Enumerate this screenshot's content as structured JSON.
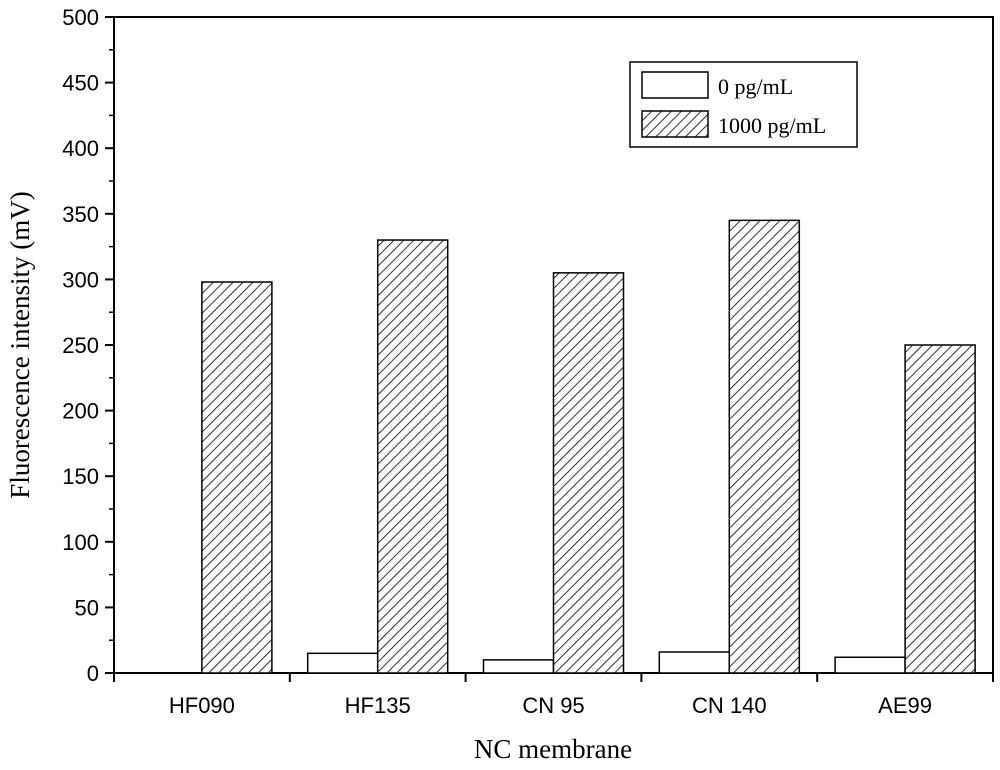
{
  "chart_data": {
    "type": "bar",
    "categories": [
      "HF090",
      "HF135",
      "CN 95",
      "CN 140",
      "AE99"
    ],
    "series": [
      {
        "name": "0 pg/mL",
        "values": [
          0,
          15,
          10,
          16,
          12
        ],
        "fill": "#ffffff"
      },
      {
        "name": "1000 pg/mL",
        "values": [
          298,
          330,
          305,
          345,
          250
        ],
        "fill": "hatch"
      }
    ],
    "xlabel": "NC membrane",
    "ylabel": "Fluorescence intensity (mV)",
    "ylim": [
      0,
      500
    ],
    "yticks": [
      0,
      50,
      100,
      150,
      200,
      250,
      300,
      350,
      400,
      450,
      500
    ],
    "grid": false,
    "legend_position": "top-right",
    "colors": {
      "axis": "#000000",
      "bar_edge": "#000000",
      "background": "#ffffff"
    }
  }
}
